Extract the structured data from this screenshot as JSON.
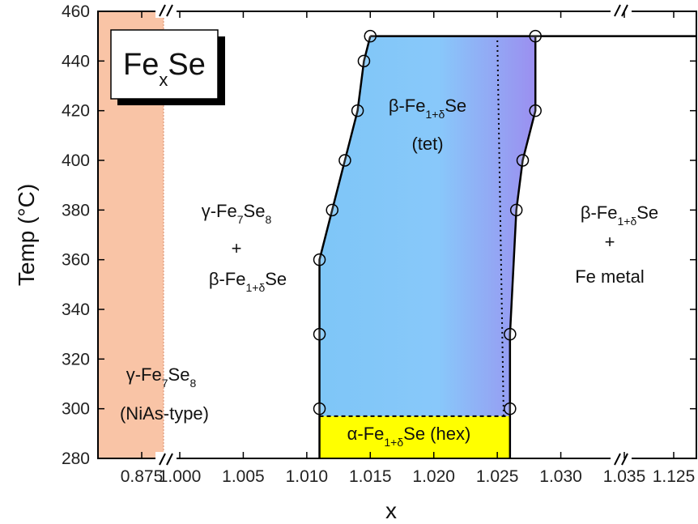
{
  "chart_data": {
    "type": "phase-diagram",
    "title_box": {
      "base": "Fe",
      "sub": "x",
      "rest": "Se"
    },
    "xlabel": "x",
    "ylabel": "Temp (°C)",
    "ylim": [
      280,
      460
    ],
    "y_ticks": [
      "280",
      "300",
      "320",
      "340",
      "360",
      "380",
      "400",
      "420",
      "440",
      "460"
    ],
    "x_axis_segments": [
      {
        "ticks": [
          "0.875"
        ]
      },
      {
        "ticks": [
          "1.000",
          "1.005",
          "1.010",
          "1.015",
          "1.020",
          "1.025",
          "1.030",
          "1.035"
        ]
      },
      {
        "ticks": [
          "1.125"
        ]
      }
    ],
    "top_line_temp": 450,
    "left_boundary": [
      {
        "x": 1.011,
        "y": 300
      },
      {
        "x": 1.011,
        "y": 330
      },
      {
        "x": 1.011,
        "y": 360
      },
      {
        "x": 1.012,
        "y": 380
      },
      {
        "x": 1.013,
        "y": 400
      },
      {
        "x": 1.014,
        "y": 420
      },
      {
        "x": 1.0145,
        "y": 440
      },
      {
        "x": 1.015,
        "y": 450
      }
    ],
    "right_boundary": [
      {
        "x": 1.026,
        "y": 300
      },
      {
        "x": 1.026,
        "y": 330
      },
      {
        "x": 1.0265,
        "y": 380
      },
      {
        "x": 1.027,
        "y": 400
      },
      {
        "x": 1.028,
        "y": 420
      },
      {
        "x": 1.028,
        "y": 450
      }
    ],
    "hex_region": {
      "x": [
        1.011,
        1.026
      ],
      "temp_top": 297
    },
    "dotted_line": [
      {
        "x": 1.0255,
        "y": 297
      },
      {
        "x": 1.025,
        "y": 450
      }
    ],
    "regions": [
      {
        "id": "beta-tet",
        "lines": [
          {
            "base": "β-Fe",
            "sub": "1+δ",
            "rest": "Se"
          },
          {
            "base": "(tet)",
            "sub": "",
            "rest": ""
          }
        ]
      },
      {
        "id": "gamma-beta",
        "lines": [
          {
            "base": "γ-Fe",
            "sub": "7",
            "rest": "Se",
            "sub2": "8"
          },
          {
            "base": "+",
            "sub": "",
            "rest": ""
          },
          {
            "base": "β-Fe",
            "sub": "1+δ",
            "rest": "Se"
          }
        ]
      },
      {
        "id": "beta-metal",
        "lines": [
          {
            "base": "β-Fe",
            "sub": "1+δ",
            "rest": "Se"
          },
          {
            "base": "+",
            "sub": "",
            "rest": ""
          },
          {
            "base": "Fe metal",
            "sub": "",
            "rest": ""
          }
        ]
      },
      {
        "id": "gamma-nias",
        "lines": [
          {
            "base": "γ-Fe",
            "sub": "7",
            "rest": "Se",
            "sub2": "8"
          },
          {
            "base": "(NiAs-type)",
            "sub": "",
            "rest": ""
          }
        ]
      },
      {
        "id": "alpha-hex",
        "lines": [
          {
            "base": "α-Fe",
            "sub": "1+δ",
            "rest": "Se (hex)"
          }
        ]
      }
    ],
    "colors": {
      "gamma_band": "#f9c4a6",
      "tet_left": "#7ec6f7",
      "tet_right": "#9b8ff0",
      "hex": "#ffff00",
      "line": "#000000"
    }
  }
}
